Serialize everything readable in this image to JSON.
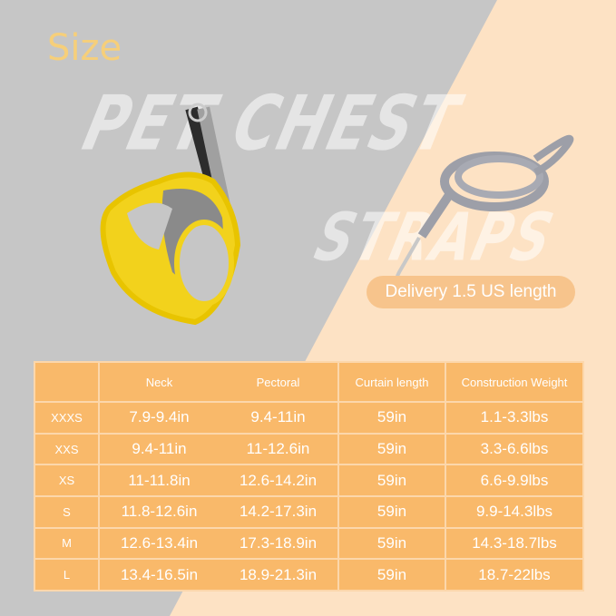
{
  "title": "Size",
  "watermark": {
    "line1": "PET CHEST",
    "line2": "STRAPS"
  },
  "delivery_label": "Delivery 1.5 US length",
  "colors": {
    "background_gray": "#c6c6c6",
    "background_peach": "#fde2c4",
    "table": "#f9b96a",
    "title": "#f6cf7a",
    "harness": "#f2d21c"
  },
  "table": {
    "headers": [
      "",
      "Neck",
      "Pectoral",
      "Curtain length",
      "Construction Weight"
    ],
    "rows": [
      [
        "XXXS",
        "7.9-9.4in",
        "9.4-11in",
        "59in",
        "1.1-3.3lbs"
      ],
      [
        "XXS",
        "9.4-11in",
        "11-12.6in",
        "59in",
        "3.3-6.6lbs"
      ],
      [
        "XS",
        "11-11.8in",
        "12.6-14.2in",
        "59in",
        "6.6-9.9lbs"
      ],
      [
        "S",
        "11.8-12.6in",
        "14.2-17.3in",
        "59in",
        "9.9-14.3lbs"
      ],
      [
        "M",
        "12.6-13.4in",
        "17.3-18.9in",
        "59in",
        "14.3-18.7lbs"
      ],
      [
        "L",
        "13.4-16.5in",
        "18.9-21.3in",
        "59in",
        "18.7-22lbs"
      ]
    ]
  }
}
